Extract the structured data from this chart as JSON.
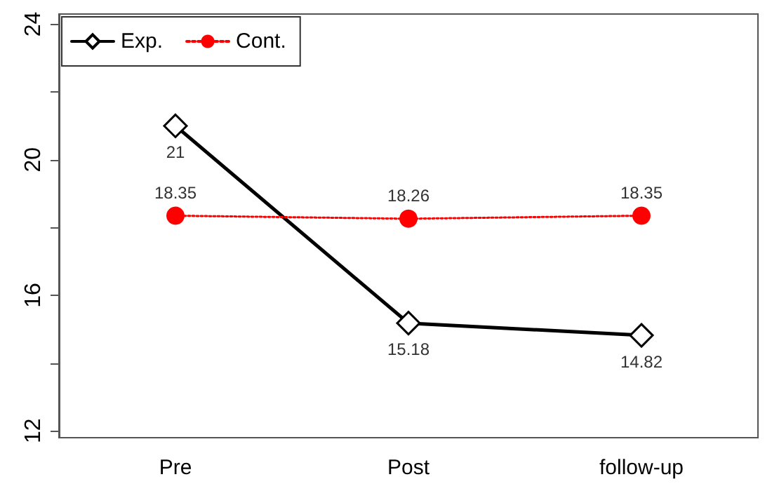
{
  "chart_data": {
    "type": "line",
    "categories": [
      "Pre",
      "Post",
      "follow-up"
    ],
    "series": [
      {
        "name": "Exp.",
        "color": "#000000",
        "values": [
          21,
          15.18,
          14.82
        ],
        "marker": "diamond",
        "line_style": "solid"
      },
      {
        "name": "Cont.",
        "color": "#ff0000",
        "values": [
          18.35,
          18.26,
          18.35
        ],
        "marker": "circle",
        "line_style": "dotted"
      }
    ],
    "ylim": [
      11.8,
      24.3
    ],
    "yticks": [
      12,
      {
        "value": 14,
        "label": null
      },
      16,
      {
        "value": 18,
        "label": null
      },
      20,
      {
        "value": 22,
        "label": null
      },
      24
    ],
    "data_labels": true,
    "grid": false,
    "legend": "top left"
  }
}
